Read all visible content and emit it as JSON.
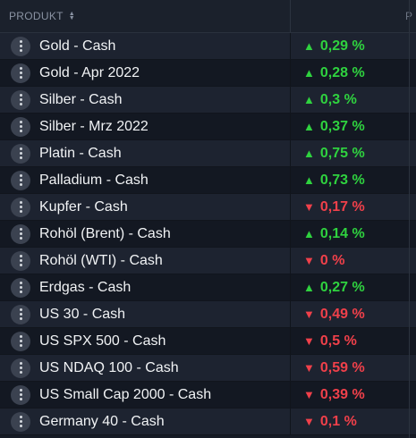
{
  "header": {
    "product_label": "PRODUKT",
    "change_label": "P"
  },
  "colors": {
    "up": "#2fd23f",
    "down": "#f0404a"
  },
  "rows": [
    {
      "name": "Gold - Cash",
      "change": "0,29 %",
      "dir": "up"
    },
    {
      "name": "Gold - Apr 2022",
      "change": "0,28 %",
      "dir": "up"
    },
    {
      "name": "Silber - Cash",
      "change": "0,3 %",
      "dir": "up"
    },
    {
      "name": "Silber - Mrz 2022",
      "change": "0,37 %",
      "dir": "up"
    },
    {
      "name": "Platin - Cash",
      "change": "0,75 %",
      "dir": "up"
    },
    {
      "name": "Palladium - Cash",
      "change": "0,73 %",
      "dir": "up"
    },
    {
      "name": "Kupfer - Cash",
      "change": "0,17 %",
      "dir": "down"
    },
    {
      "name": "Rohöl (Brent) - Cash",
      "change": "0,14 %",
      "dir": "up"
    },
    {
      "name": "Rohöl (WTI) - Cash",
      "change": "0 %",
      "dir": "down"
    },
    {
      "name": "Erdgas - Cash",
      "change": "0,27 %",
      "dir": "up"
    },
    {
      "name": "US 30 - Cash",
      "change": "0,49 %",
      "dir": "down"
    },
    {
      "name": "US SPX 500 - Cash",
      "change": "0,5 %",
      "dir": "down"
    },
    {
      "name": "US NDAQ 100 - Cash",
      "change": "0,59 %",
      "dir": "down"
    },
    {
      "name": "US Small Cap 2000 - Cash",
      "change": "0,39 %",
      "dir": "down"
    },
    {
      "name": "Germany 40 - Cash",
      "change": "0,1 %",
      "dir": "down"
    }
  ]
}
